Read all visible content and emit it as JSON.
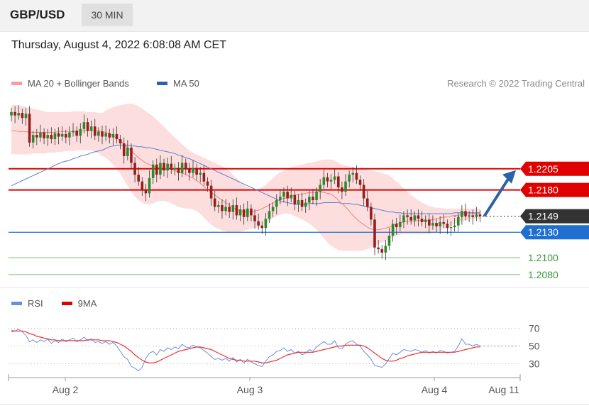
{
  "header": {
    "symbol": "GBP/USD",
    "timeframe": "30 MIN"
  },
  "datetime": "Thursday, August 4, 2022 6:08:08 AM CET",
  "legend": {
    "ma20_label": "MA 20 + Bollinger Bands",
    "ma50_label": "MA 50",
    "research": "Research © 2022 Trading Central"
  },
  "rsi_legend": {
    "rsi_label": "RSI",
    "ma9_label": "9MA"
  },
  "colors": {
    "ma20": "#f48080",
    "band": "#fcd6d6",
    "ma50": "#5b7ec9",
    "resistance": "#e00000",
    "pivot": "#1f6fd1",
    "support": "#3a9a3a",
    "candle_up": "#2b8a2b",
    "candle_down": "#9a1c1c",
    "current": "#333333",
    "arrow": "#2d62a8",
    "rsi": "#6b8fe0",
    "rsi_ma": "#e83030"
  },
  "chart_data": [
    {
      "type": "candlestick",
      "title": "",
      "x_ticks": [
        "Aug 2",
        "Aug 3",
        "Aug 4",
        "Aug 11"
      ],
      "levels": [
        {
          "value": 1.2205,
          "label": "1.2205",
          "kind": "resistance"
        },
        {
          "value": 1.218,
          "label": "1.2180",
          "kind": "resistance"
        },
        {
          "value": 1.2149,
          "label": "1.2149",
          "kind": "current"
        },
        {
          "value": 1.213,
          "label": "1.2130",
          "kind": "pivot"
        },
        {
          "value": 1.21,
          "label": "1.2100",
          "kind": "support"
        },
        {
          "value": 1.208,
          "label": "1.2080",
          "kind": "support"
        }
      ],
      "ylim": [
        1.2069,
        1.2287
      ],
      "close": [
        1.2272,
        1.2268,
        1.2271,
        1.2265,
        1.227,
        1.2236,
        1.2245,
        1.2242,
        1.2248,
        1.2241,
        1.2245,
        1.224,
        1.2247,
        1.2243,
        1.2246,
        1.2242,
        1.2248,
        1.225,
        1.2244,
        1.2252,
        1.226,
        1.225,
        1.2255,
        1.2244,
        1.2249,
        1.2243,
        1.2247,
        1.2242,
        1.2246,
        1.224,
        1.2235,
        1.222,
        1.223,
        1.2212,
        1.2198,
        1.219,
        1.218,
        1.2176,
        1.2194,
        1.221,
        1.2198,
        1.2212,
        1.2203,
        1.2211,
        1.2204,
        1.2206,
        1.22,
        1.2212,
        1.2205,
        1.22,
        1.2206,
        1.2198,
        1.22,
        1.219,
        1.2185,
        1.217,
        1.216,
        1.2162,
        1.2155,
        1.216,
        1.2154,
        1.2162,
        1.215,
        1.2157,
        1.2148,
        1.2158,
        1.215,
        1.2143,
        1.2138,
        1.2135,
        1.2146,
        1.2155,
        1.216,
        1.2168,
        1.2172,
        1.2178,
        1.217,
        1.2174,
        1.2163,
        1.2168,
        1.216,
        1.2165,
        1.2172,
        1.2168,
        1.2178,
        1.2186,
        1.2195,
        1.219,
        1.2192,
        1.2196,
        1.2183,
        1.2178,
        1.219,
        1.2198,
        1.22,
        1.2192,
        1.2186,
        1.217,
        1.216,
        1.2145,
        1.2112,
        1.211,
        1.2106,
        1.2114,
        1.2126,
        1.214,
        1.2136,
        1.2142,
        1.215,
        1.2148,
        1.2144,
        1.215,
        1.2146,
        1.2142,
        1.2145,
        1.2138,
        1.2141,
        1.2137,
        1.2142,
        1.214,
        1.2135,
        1.2136,
        1.2138,
        1.2148,
        1.2155,
        1.2149,
        1.215,
        1.2148,
        1.2151,
        1.2149
      ],
      "ma20": [
        1.225,
        1.225,
        1.2249,
        1.2249,
        1.2249,
        1.2248,
        1.2248,
        1.2248,
        1.2248,
        1.2248,
        1.2248,
        1.2248,
        1.2248,
        1.2249,
        1.2249,
        1.2249,
        1.2249,
        1.2249,
        1.2249,
        1.225,
        1.225,
        1.225,
        1.225,
        1.225,
        1.225,
        1.2249,
        1.2248,
        1.2246,
        1.2244,
        1.2241,
        1.2238,
        1.2234,
        1.223,
        1.2226,
        1.2222,
        1.2218,
        1.2215,
        1.2212,
        1.221,
        1.2208,
        1.2207,
        1.2206,
        1.2206,
        1.2205,
        1.2204,
        1.2203,
        1.2201,
        1.22,
        1.2198,
        1.2196,
        1.2194,
        1.2191,
        1.2188,
        1.2184,
        1.218,
        1.2177,
        1.2174,
        1.2171,
        1.2168,
        1.2165,
        1.2162,
        1.2159,
        1.2157,
        1.2155,
        1.2154,
        1.2154,
        1.2154,
        1.2155,
        1.2156,
        1.2158,
        1.216,
        1.2162,
        1.2165,
        1.2167,
        1.2169,
        1.217,
        1.2171,
        1.2173,
        1.2174,
        1.2175,
        1.2175,
        1.2176,
        1.2177,
        1.2177,
        1.2178,
        1.2178,
        1.2177,
        1.2176,
        1.2175,
        1.2172,
        1.2168,
        1.2164,
        1.216,
        1.2155,
        1.215,
        1.2146,
        1.2142,
        1.2139,
        1.2136,
        1.2134,
        1.2133,
        1.2133,
        1.2134,
        1.2135,
        1.2136,
        1.2138,
        1.214,
        1.2141,
        1.2142,
        1.2143,
        1.2143,
        1.2143,
        1.2144,
        1.2144,
        1.2144,
        1.2144,
        1.2145,
        1.2146,
        1.2147,
        1.2148,
        1.2148,
        1.2149,
        1.215,
        1.215,
        1.2151,
        1.2151,
        1.2152,
        1.2152,
        1.2152,
        1.2152
      ],
      "bb_upper": [
        1.228,
        1.228,
        1.228,
        1.2279,
        1.2278,
        1.2277,
        1.2276,
        1.2275,
        1.2274,
        1.2273,
        1.2272,
        1.2272,
        1.2272,
        1.2272,
        1.2272,
        1.2272,
        1.2272,
        1.2273,
        1.2273,
        1.2273,
        1.2273,
        1.2272,
        1.2272,
        1.2272,
        1.2271,
        1.2271,
        1.2274,
        1.2276,
        1.2278,
        1.2279,
        1.228,
        1.2281,
        1.2282,
        1.2282,
        1.2281,
        1.2279,
        1.2276,
        1.2273,
        1.227,
        1.2267,
        1.2263,
        1.2259,
        1.2255,
        1.225,
        1.2246,
        1.2242,
        1.2238,
        1.2234,
        1.223,
        1.2227,
        1.2224,
        1.2222,
        1.222,
        1.2218,
        1.2216,
        1.2214,
        1.2212,
        1.221,
        1.2208,
        1.2206,
        1.2202,
        1.2198,
        1.2194,
        1.219,
        1.2186,
        1.2183,
        1.2181,
        1.2179,
        1.218,
        1.2183,
        1.2186,
        1.219,
        1.2194,
        1.2198,
        1.2201,
        1.2203,
        1.2205,
        1.2207,
        1.2208,
        1.2209,
        1.221,
        1.2211,
        1.2212,
        1.2213,
        1.2214,
        1.2215,
        1.2216,
        1.2216,
        1.2216,
        1.2215,
        1.2212,
        1.221,
        1.2209,
        1.2208,
        1.2207,
        1.2206,
        1.2206,
        1.2205,
        1.2204,
        1.2203,
        1.2202,
        1.2201,
        1.22,
        1.2199,
        1.2197,
        1.2194,
        1.219,
        1.2186,
        1.2182,
        1.2178,
        1.2174,
        1.2171,
        1.2168,
        1.2165,
        1.2163,
        1.2161,
        1.216,
        1.2159,
        1.2159,
        1.2158,
        1.2158,
        1.2158,
        1.2158,
        1.2158,
        1.2158,
        1.2158,
        1.2158,
        1.2158,
        1.2158,
        1.2158
      ],
      "bb_lower": [
        1.2222,
        1.2222,
        1.2222,
        1.2222,
        1.2222,
        1.2222,
        1.2223,
        1.2223,
        1.2223,
        1.2223,
        1.2224,
        1.2224,
        1.2224,
        1.2225,
        1.2225,
        1.2226,
        1.2226,
        1.2226,
        1.2227,
        1.2227,
        1.2227,
        1.2227,
        1.2227,
        1.2225,
        1.2223,
        1.222,
        1.2218,
        1.2214,
        1.221,
        1.2205,
        1.2199,
        1.2192,
        1.2185,
        1.2178,
        1.2172,
        1.2168,
        1.2165,
        1.2163,
        1.2163,
        1.2164,
        1.2166,
        1.2167,
        1.2167,
        1.2166,
        1.2164,
        1.2162,
        1.216,
        1.2159,
        1.2158,
        1.2158,
        1.2157,
        1.2155,
        1.2152,
        1.2147,
        1.2143,
        1.2139,
        1.2136,
        1.2134,
        1.2132,
        1.2131,
        1.213,
        1.213,
        1.213,
        1.2131,
        1.2132,
        1.2133,
        1.2134,
        1.2135,
        1.2136,
        1.2138,
        1.214,
        1.2143,
        1.2146,
        1.2149,
        1.2151,
        1.2152,
        1.2152,
        1.2151,
        1.2149,
        1.2147,
        1.2145,
        1.2143,
        1.214,
        1.2137,
        1.2133,
        1.2128,
        1.2123,
        1.2118,
        1.2114,
        1.2111,
        1.2109,
        1.2108,
        1.2108,
        1.2108,
        1.2108,
        1.2108,
        1.2108,
        1.2109,
        1.211,
        1.2112,
        1.2114,
        1.2116,
        1.2118,
        1.212,
        1.2122,
        1.2124,
        1.2126,
        1.2127,
        1.2128,
        1.2128,
        1.2128,
        1.2128,
        1.2128,
        1.2128,
        1.2128,
        1.2128,
        1.2129,
        1.213,
        1.2132,
        1.2134,
        1.2136,
        1.2138,
        1.214,
        1.2142,
        1.2143,
        1.2144,
        1.2145,
        1.2146,
        1.2146,
        1.2146
      ],
      "ma50": [
        1.2185,
        1.2187,
        1.2189,
        1.2191,
        1.2193,
        1.2195,
        1.2197,
        1.2199,
        1.2201,
        1.2203,
        1.2205,
        1.2207,
        1.2209,
        1.2211,
        1.2213,
        1.2214,
        1.2215,
        1.2217,
        1.2218,
        1.222,
        1.2221,
        1.2222,
        1.2224,
        1.2225,
        1.2226,
        1.2227,
        1.2229,
        1.2231,
        1.2232,
        1.2233,
        1.2233,
        1.2233,
        1.2233,
        1.2232,
        1.2232,
        1.2231,
        1.2231,
        1.223,
        1.223,
        1.2229,
        1.2228,
        1.2227,
        1.2226,
        1.2225,
        1.2224,
        1.2223,
        1.2221,
        1.222,
        1.2218,
        1.2217,
        1.2215,
        1.2213,
        1.2211,
        1.2209,
        1.2207,
        1.2205,
        1.2203,
        1.2201,
        1.2199,
        1.2197,
        1.2195,
        1.2193,
        1.2191,
        1.2189,
        1.2187,
        1.2185,
        1.2183,
        1.2181,
        1.2179,
        1.2177,
        1.2175,
        1.2173,
        1.2171,
        1.2169,
        1.2167,
        1.2166,
        1.2165,
        1.2164,
        1.2163,
        1.2163,
        1.2163,
        1.2163,
        1.2164,
        1.2164,
        1.2164,
        1.2164,
        1.2165,
        1.2165,
        1.2165,
        1.2165,
        1.2165,
        1.2164,
        1.2164,
        1.2164,
        1.2163,
        1.2163,
        1.2162,
        1.2161,
        1.216,
        1.2159,
        1.2158,
        1.2157,
        1.2156,
        1.2155,
        1.2154,
        1.2154,
        1.2153,
        1.2153,
        1.2152,
        1.2152,
        1.2152,
        1.2152,
        1.2152,
        1.2152,
        1.2152,
        1.2152,
        1.2152,
        1.2152,
        1.2152,
        1.2152,
        1.2152,
        1.2152,
        1.2153,
        1.2153,
        1.2153,
        1.2153,
        1.2153,
        1.2153,
        1.2153,
        1.2153
      ]
    },
    {
      "type": "line",
      "title": "",
      "y_ticks": [
        70,
        50,
        30
      ],
      "ylim": [
        20,
        80
      ],
      "series": [
        {
          "name": "RSI",
          "values": [
            68,
            67,
            69,
            66,
            62,
            55,
            57,
            54,
            57,
            55,
            58,
            53,
            56,
            54,
            58,
            55,
            57,
            59,
            55,
            57,
            60,
            56,
            58,
            54,
            55,
            53,
            55,
            52,
            54,
            50,
            44,
            38,
            35,
            27,
            25,
            22,
            26,
            36,
            42,
            44,
            40,
            46,
            44,
            48,
            46,
            49,
            47,
            52,
            49,
            48,
            51,
            49,
            48,
            45,
            42,
            38,
            35,
            36,
            34,
            36,
            33,
            37,
            32,
            35,
            31,
            35,
            32,
            30,
            28,
            27,
            33,
            38,
            40,
            44,
            45,
            48,
            44,
            46,
            42,
            44,
            40,
            42,
            46,
            44,
            49,
            52,
            55,
            52,
            52,
            56,
            48,
            47,
            52,
            55,
            56,
            52,
            50,
            44,
            40,
            35,
            28,
            27,
            26,
            30,
            36,
            42,
            40,
            43,
            46,
            45,
            44,
            46,
            45,
            43,
            45,
            42,
            44,
            42,
            45,
            44,
            42,
            43,
            44,
            50,
            58,
            52,
            52,
            50,
            52,
            50
          ]
        },
        {
          "name": "9MA",
          "values": [
            66,
            67,
            67,
            67,
            66,
            64,
            63,
            61,
            60,
            59,
            58,
            57,
            57,
            56,
            56,
            56,
            56,
            56,
            56,
            56,
            56,
            57,
            57,
            57,
            57,
            56,
            56,
            56,
            55,
            54,
            52,
            50,
            47,
            44,
            40,
            37,
            34,
            32,
            31,
            31,
            32,
            34,
            36,
            38,
            40,
            42,
            44,
            45,
            46,
            47,
            48,
            49,
            49,
            48,
            47,
            46,
            44,
            42,
            40,
            38,
            36,
            35,
            34,
            34,
            33,
            33,
            33,
            33,
            32,
            31,
            31,
            32,
            33,
            34,
            36,
            38,
            40,
            41,
            42,
            43,
            43,
            43,
            43,
            43,
            44,
            45,
            46,
            47,
            48,
            49,
            50,
            50,
            51,
            51,
            51,
            51,
            51,
            50,
            48,
            45,
            42,
            39,
            36,
            34,
            33,
            33,
            34,
            36,
            37,
            39,
            40,
            41,
            42,
            43,
            43,
            43,
            43,
            43,
            43,
            43,
            43,
            43,
            43,
            44,
            45,
            46,
            47,
            48,
            49,
            49
          ]
        }
      ],
      "x_ticks": [
        "Aug 2",
        "Aug 3",
        "Aug 4",
        "Aug 11"
      ]
    }
  ]
}
